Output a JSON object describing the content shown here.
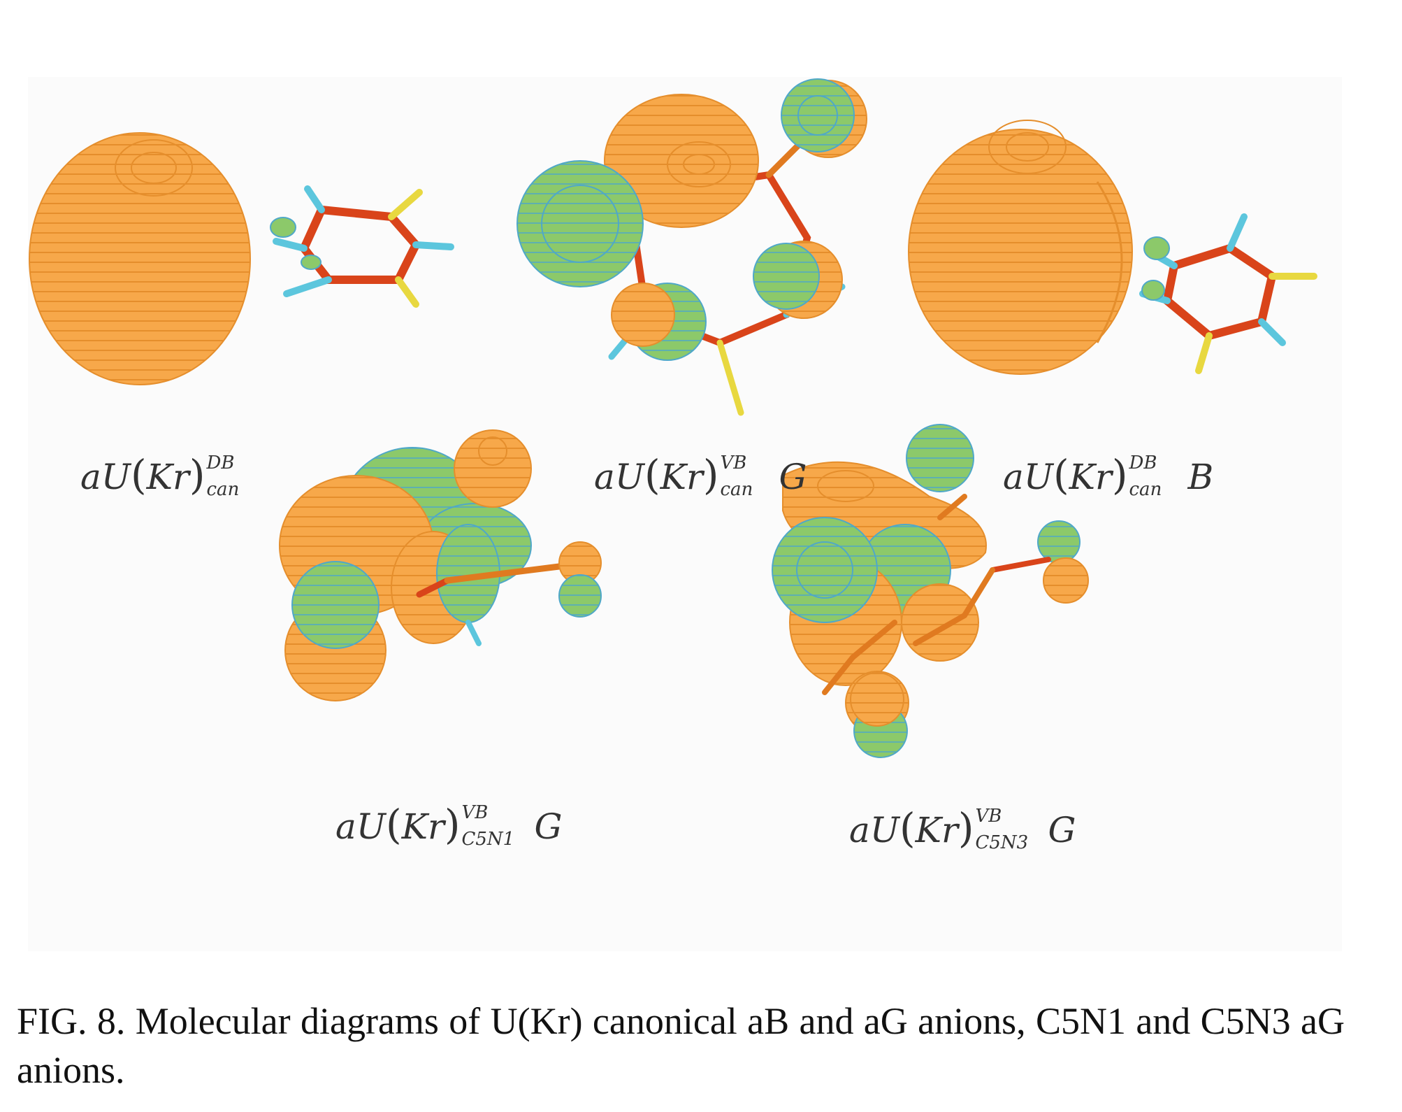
{
  "colors": {
    "orange_lobe": "#f7a84a",
    "orange_contour": "#e58e2c",
    "green_lobe": "#8cc96a",
    "green_contour": "#4fa8c8",
    "bond_red": "#d9441a",
    "bond_orange": "#e07a20",
    "hydrogen": "#5cc6dd",
    "oxygen": "#e8d840"
  },
  "panels": [
    {
      "prefix": "aU",
      "inner": "Kr",
      "sup": "DB",
      "sub": "can",
      "tail": ""
    },
    {
      "prefix": "aU",
      "inner": "Kr",
      "sup": "VB",
      "sub": "can",
      "tail": "G"
    },
    {
      "prefix": "aU",
      "inner": "Kr",
      "sup": "DB",
      "sub": "can",
      "tail": "B"
    },
    {
      "prefix": "aU",
      "inner": "Kr",
      "sup": "VB",
      "sub": "C5N1",
      "tail": "G"
    },
    {
      "prefix": "aU",
      "inner": "Kr",
      "sup": "VB",
      "sub": "C5N3",
      "tail": "G"
    }
  ],
  "caption": "FIG. 8.  Molecular diagrams of U(Kr) canonical aB and aG anions, C5N1 and C5N3 aG anions."
}
